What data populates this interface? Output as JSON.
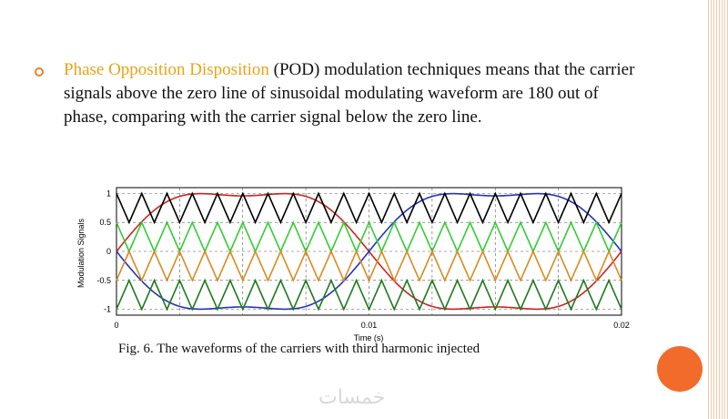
{
  "slide": {
    "paragraph": {
      "highlight": "Phase Opposition Disposition",
      "rest": " (POD) modulation techniques means that the carrier signals above the zero line of sinusoidal modulating waveform are 180 out of phase, comparing with the carrier signal below the zero line."
    },
    "caption": "Fig. 6. The waveforms of the carriers with third harmonic injected",
    "watermark": "خمسات",
    "colors": {
      "bullet": "#e8812f",
      "highlight": "#e8a317",
      "accent_circle": "#f26b2a"
    }
  },
  "chart_data": {
    "type": "line",
    "xlabel": "Time (s)",
    "ylabel": "Modulation Signals",
    "xlim": [
      0,
      0.02
    ],
    "ylim": [
      -1.1,
      1.1
    ],
    "xticks": [
      0,
      0.01,
      0.02
    ],
    "xtick_labels": [
      "0",
      "0.01",
      "0.02"
    ],
    "yticks": [
      1,
      0.5,
      0,
      -0.5,
      -1
    ],
    "ytick_labels": [
      "1",
      "0.5",
      "0",
      "-0.5",
      "-1"
    ],
    "grid": true,
    "carrier_cycles": 20,
    "series": [
      {
        "kind": "modulating",
        "color": "#cc2222",
        "phase": 0
      },
      {
        "kind": "modulating",
        "color": "#2233bb",
        "phase": 180
      },
      {
        "kind": "carrier",
        "color": "#000000",
        "min": 0.5,
        "max": 1.0,
        "phase": 0
      },
      {
        "kind": "carrier",
        "color": "#33cc33",
        "min": 0.0,
        "max": 0.5,
        "phase": 0
      },
      {
        "kind": "carrier",
        "color": "#d98a1f",
        "min": -0.5,
        "max": 0.0,
        "phase": 180
      },
      {
        "kind": "carrier",
        "color": "#1f7a1f",
        "min": -1.0,
        "max": -0.5,
        "phase": 180
      }
    ]
  }
}
